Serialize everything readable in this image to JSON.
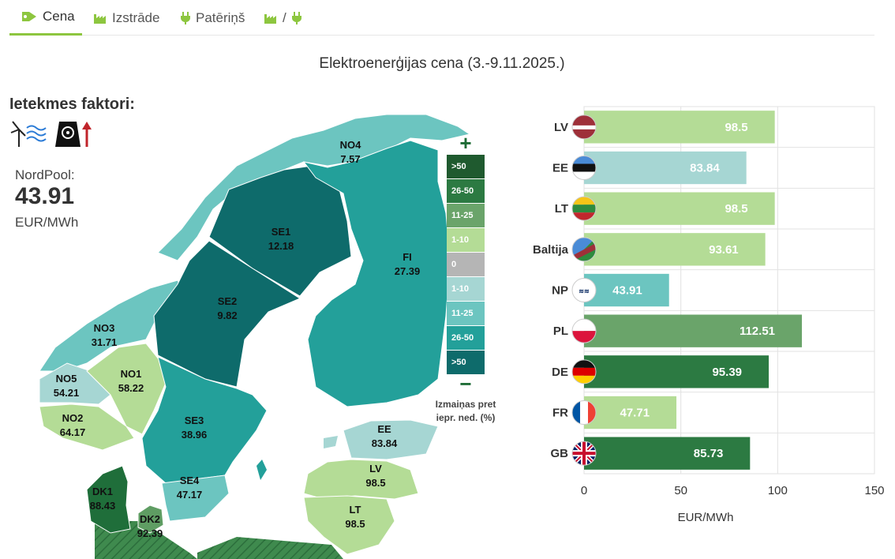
{
  "tabs": [
    {
      "label": "Cena",
      "icon": "tag-icon",
      "active": true
    },
    {
      "label": "Izstrāde",
      "icon": "factory-icon",
      "active": false
    },
    {
      "label": "Patēriņš",
      "icon": "plug-icon",
      "active": false
    },
    {
      "label": "/",
      "icon": "factory-plug-icon",
      "active": false
    }
  ],
  "title": "Elektroenerģijas cena (3.-9.11.2025.)",
  "factors": {
    "title": "Ietekmes faktori:",
    "icons": [
      "wind-icon",
      "nuclear-plant-up-icon"
    ]
  },
  "nordpool": {
    "label": "NordPool:",
    "value": "43.91",
    "unit": "EUR/MWh"
  },
  "map": {
    "regions": [
      {
        "id": "NO4",
        "value": "7.57",
        "color": "#6cc5c0"
      },
      {
        "id": "SE1",
        "value": "12.18",
        "color": "#0e6b6b"
      },
      {
        "id": "FI",
        "value": "27.39",
        "color": "#23a09a"
      },
      {
        "id": "SE2",
        "value": "9.82",
        "color": "#0e6b6b"
      },
      {
        "id": "NO3",
        "value": "31.71",
        "color": "#6cc5c0"
      },
      {
        "id": "NO5",
        "value": "54.21",
        "color": "#a6d6d3"
      },
      {
        "id": "NO1",
        "value": "58.22",
        "color": "#b4dc96"
      },
      {
        "id": "NO2",
        "value": "64.17",
        "color": "#b4dc96"
      },
      {
        "id": "SE3",
        "value": "38.96",
        "color": "#23a09a"
      },
      {
        "id": "SE4",
        "value": "47.17",
        "color": "#6cc5c0"
      },
      {
        "id": "DK1",
        "value": "88.43",
        "color": "#1f6e3a"
      },
      {
        "id": "DK2",
        "value": "92.39",
        "color": "#5f9d63"
      },
      {
        "id": "EE",
        "value": "83.84",
        "color": "#a6d6d3"
      },
      {
        "id": "LV",
        "value": "98.5",
        "color": "#b4dc96"
      },
      {
        "id": "LT",
        "value": "98.5",
        "color": "#b4dc96"
      }
    ]
  },
  "legend": {
    "plus": "+",
    "minus": "−",
    "items": [
      {
        "label": ">50",
        "color": "#1f5a2f"
      },
      {
        "label": "26-50",
        "color": "#2c7a42"
      },
      {
        "label": "11-25",
        "color": "#6aa46a"
      },
      {
        "label": "1-10",
        "color": "#b4dc96"
      },
      {
        "label": "0",
        "color": "#b5b5b5"
      },
      {
        "label": "1-10",
        "color": "#a6d6d3"
      },
      {
        "label": "11-25",
        "color": "#6cc5c0"
      },
      {
        "label": "26-50",
        "color": "#23a09a"
      },
      {
        "label": ">50",
        "color": "#0e6b6b"
      }
    ],
    "note_line1": "Izmaiņas pret",
    "note_line2": "iepr. ned. (%)"
  },
  "chart_data": {
    "type": "bar",
    "orientation": "horizontal",
    "categories": [
      "LV",
      "EE",
      "LT",
      "Baltija",
      "NP",
      "PL",
      "DE",
      "FR",
      "GB"
    ],
    "values": [
      98.5,
      83.84,
      98.5,
      93.61,
      43.91,
      112.51,
      95.39,
      47.71,
      85.73
    ],
    "value_labels": [
      "98.5",
      "83.84",
      "98.5",
      "93.61",
      "43.91",
      "112.51",
      "95.39",
      "47.71",
      "85.73"
    ],
    "colors": [
      "#b4dc96",
      "#a6d6d3",
      "#b4dc96",
      "#b4dc96",
      "#6cc5c0",
      "#6aa46a",
      "#2c7a42",
      "#b4dc96",
      "#2c7a42"
    ],
    "flag_icons": [
      "latvia-flag-icon",
      "estonia-flag-icon",
      "lithuania-flag-icon",
      "baltics-flag-icon",
      "nordpool-logo-icon",
      "poland-flag-icon",
      "germany-flag-icon",
      "france-flag-icon",
      "uk-flag-icon"
    ],
    "xlabel": "EUR/MWh",
    "xlim": [
      0,
      150
    ],
    "xticks": [
      0,
      50,
      100,
      150
    ],
    "grid": true
  }
}
